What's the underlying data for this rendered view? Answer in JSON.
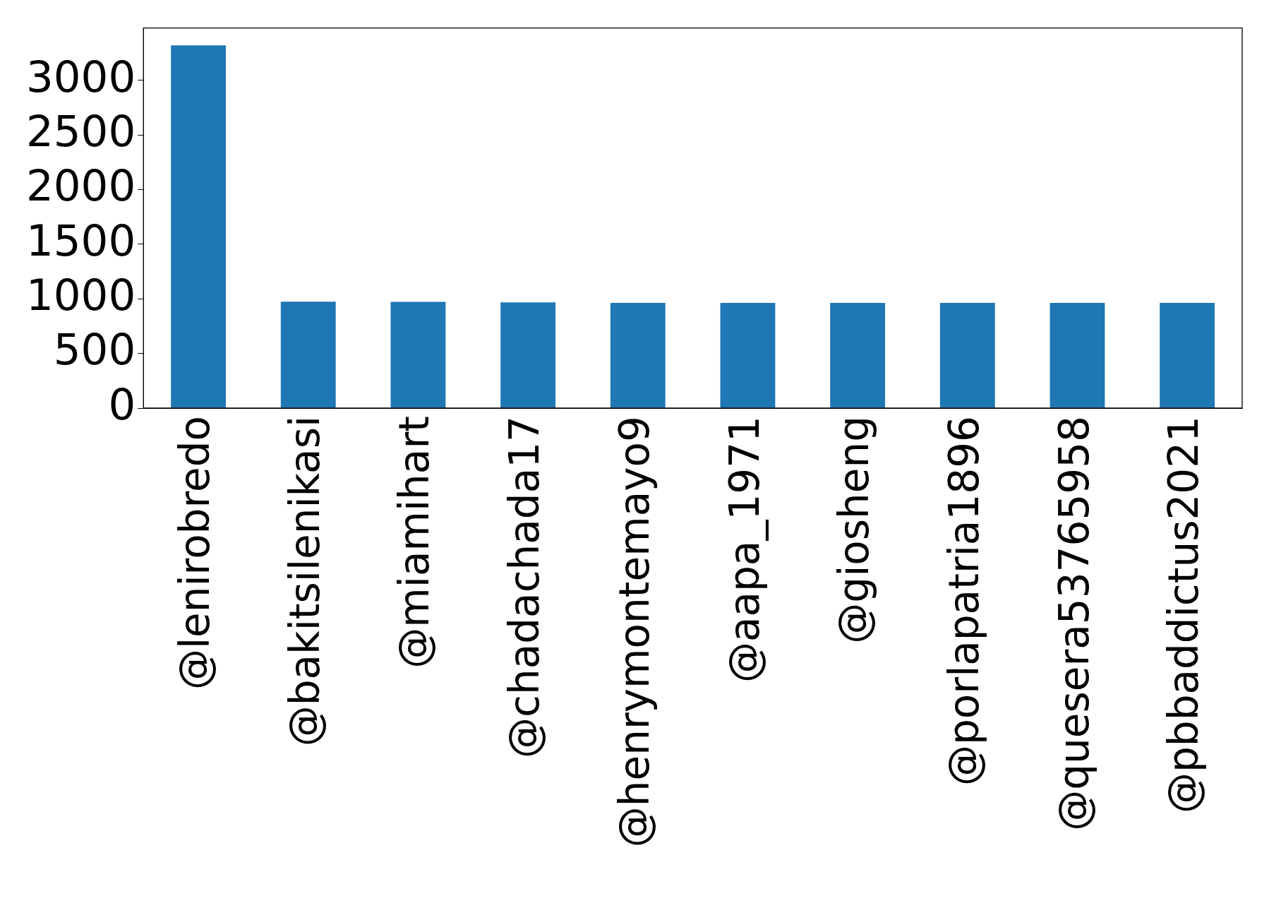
{
  "chart_data": {
    "type": "bar",
    "categories": [
      "@lenirobredo",
      "@bakitsilenikasi",
      "@miamihart",
      "@chadachada17",
      "@henrymontemayo9",
      "@aapa_1971",
      "@giosheng",
      "@porlapatria1896",
      "@quesera53765958",
      "@pbbaddictus2021"
    ],
    "values": [
      3320,
      975,
      973,
      968,
      963,
      963,
      963,
      963,
      963,
      963
    ],
    "color": "#1f77b4",
    "ylim": [
      0,
      3480
    ],
    "yticks": [
      0,
      500,
      1000,
      1500,
      2000,
      2500,
      3000
    ],
    "grid": false,
    "legend": false
  }
}
